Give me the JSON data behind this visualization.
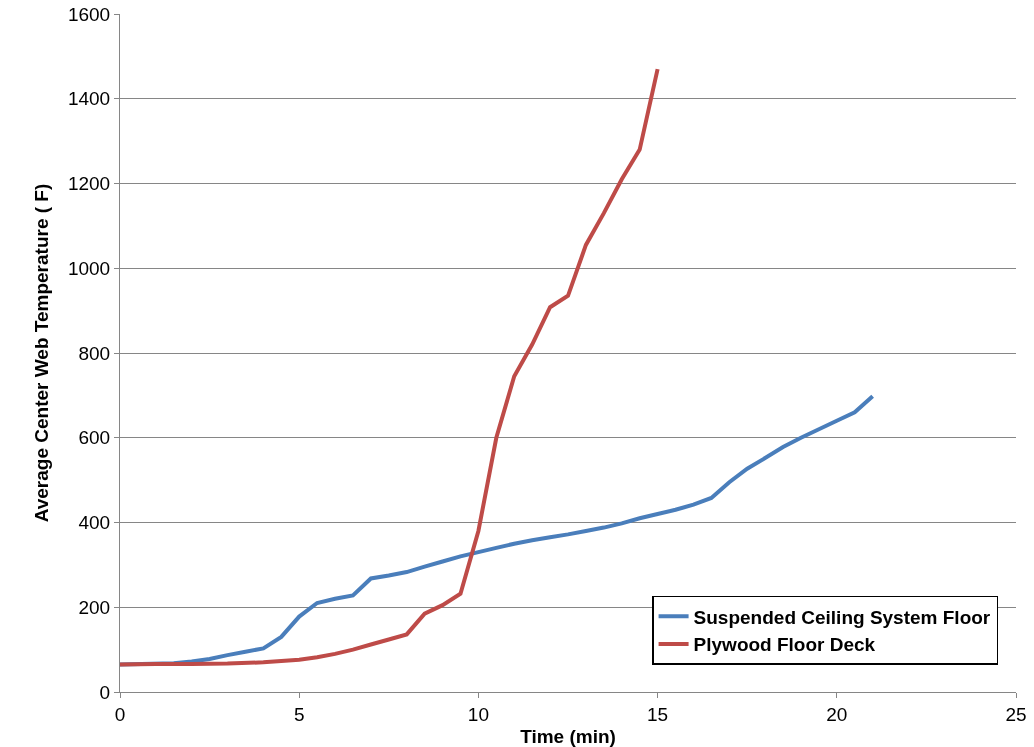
{
  "chart_data": {
    "type": "line",
    "xlabel": "Time (min)",
    "ylabel": "Average Center Web Temperature ( F)",
    "xlim": [
      0,
      25
    ],
    "xticks": [
      0,
      5,
      10,
      15,
      20,
      25
    ],
    "ylim": [
      0,
      1600
    ],
    "yticks": [
      0,
      200,
      400,
      600,
      800,
      1000,
      1200,
      1400,
      1600
    ],
    "grid": "y",
    "legend": "bottom right",
    "marker": "none",
    "line_style": "solid",
    "series": [
      {
        "name": "Suspended Ceiling System Floor",
        "color": "#4a7ebb",
        "x": [
          0,
          1.5,
          2,
          2.5,
          3,
          3.5,
          4,
          4.5,
          5,
          5.5,
          6,
          6.5,
          7,
          7.5,
          8,
          8.5,
          9,
          9.5,
          10,
          10.5,
          11,
          11.5,
          12,
          12.5,
          13,
          13.5,
          14,
          14.5,
          15,
          15.5,
          16,
          16.5,
          17,
          17.5,
          18,
          18.5,
          19,
          19.5,
          20,
          20.5,
          21
        ],
        "values": [
          65,
          68,
          72,
          78,
          87,
          95,
          103,
          130,
          178,
          210,
          220,
          228,
          268,
          275,
          283,
          296,
          308,
          320,
          330,
          340,
          350,
          358,
          365,
          372,
          380,
          388,
          398,
          410,
          420,
          430,
          442,
          458,
          495,
          527,
          552,
          578,
          600,
          620,
          640,
          660,
          698
        ]
      },
      {
        "name": "Plywood Floor Deck",
        "color": "#be4b48",
        "x": [
          0,
          1,
          2,
          3,
          4,
          5,
          5.5,
          6,
          6.5,
          7,
          7.5,
          8,
          8.5,
          9,
          9.5,
          10,
          10.5,
          11,
          11.5,
          12,
          12.5,
          13,
          13.5,
          14,
          14.5,
          15
        ],
        "values": [
          65,
          66,
          66,
          67,
          70,
          76,
          82,
          90,
          100,
          112,
          124,
          136,
          185,
          205,
          232,
          380,
          600,
          745,
          820,
          908,
          935,
          1055,
          1130,
          1210,
          1280,
          1470
        ]
      }
    ]
  }
}
